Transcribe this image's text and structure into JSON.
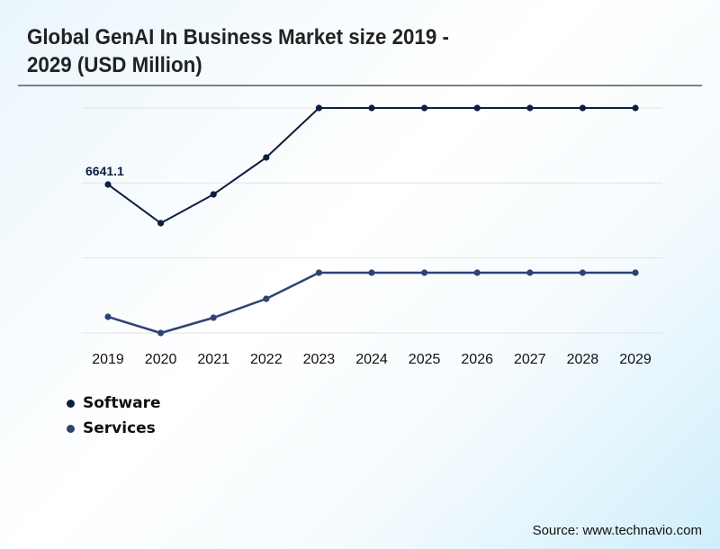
{
  "title_line1": "Global GenAI In Business Market size 2019 -",
  "title_line2": "2029 (USD Million)",
  "source": "Source: www.technavio.com",
  "colors": {
    "software": "#0d1f3f",
    "services": "#2e4374",
    "gridline": "#e3e3e3",
    "title_rule": "#808080"
  },
  "chart_data": {
    "type": "line",
    "title": "Global GenAI In Business Market size 2019 - 2029 (USD Million)",
    "xlabel": "",
    "ylabel": "",
    "categories": [
      "2019",
      "2020",
      "2021",
      "2022",
      "2023",
      "2024",
      "2025",
      "2026",
      "2027",
      "2028",
      "2029"
    ],
    "series": [
      {
        "name": "Software",
        "color": "#0d1f3f",
        "values": [
          6641.1,
          4911,
          6199,
          7849,
          10063,
          10063,
          10063,
          10063,
          10063,
          10063,
          10063
        ]
      },
      {
        "name": "Services",
        "color": "#2e4374",
        "values": [
          725,
          0,
          684,
          1530,
          2697,
          2697,
          2697,
          2697,
          2697,
          2697,
          2697
        ]
      }
    ],
    "data_labels": [
      {
        "series": "Software",
        "category": "2019",
        "text": "6641.1"
      }
    ],
    "ylim": [
      0,
      10063
    ],
    "gridlines": 4,
    "grid": true,
    "y_tick_labels_visible": false,
    "legend": {
      "position": "bottom-left",
      "entries": [
        "Software",
        "Services"
      ]
    }
  }
}
